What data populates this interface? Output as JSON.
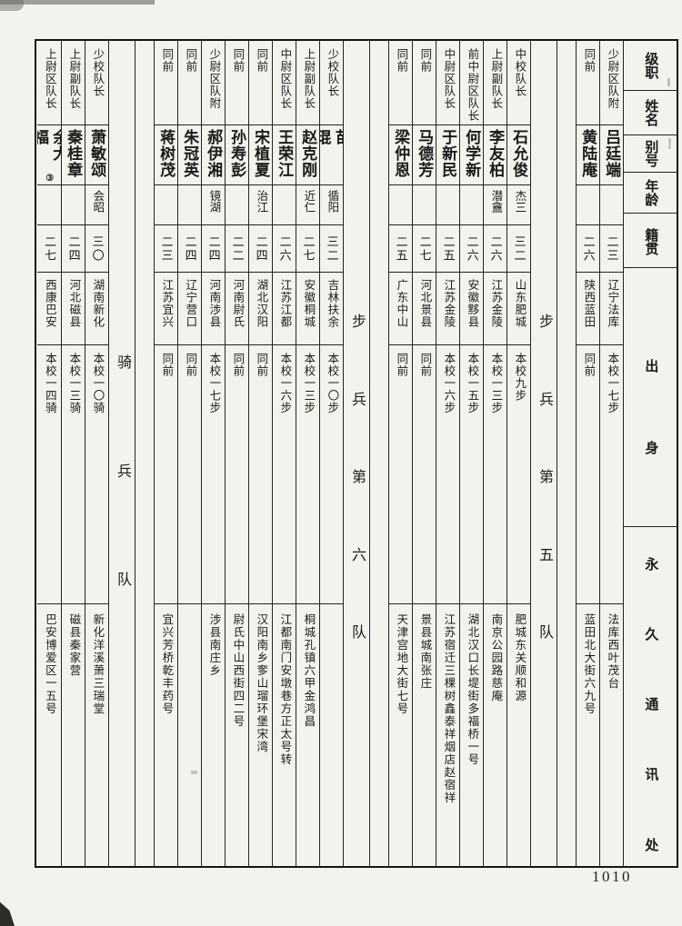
{
  "page": {
    "number": "1010"
  },
  "headers": {
    "rank": "级职",
    "name": "姓名",
    "hao": "别号",
    "age": "年龄",
    "native": "籍贯",
    "background": "出身",
    "address": "永久通讯处"
  },
  "sections": {
    "infantry5": "步兵第五队",
    "infantry6": "步兵第六队",
    "cavalry": "骑兵队"
  },
  "people": [
    {
      "rank": "少尉区队附",
      "name": "吕廷端",
      "mark": "",
      "hao": "",
      "age": "二三",
      "native": "辽宁法库",
      "background": "本校一七步",
      "address": "法库西叶茂台"
    },
    {
      "rank": "同前",
      "name": "黄陆庵",
      "mark": "",
      "hao": "",
      "age": "二六",
      "native": "陕西蓝田",
      "background": "同前",
      "address": "蓝田北大街六九号"
    },
    {
      "rank": "中校队长",
      "name": "石允俊",
      "mark": "",
      "hao": "杰三",
      "age": "三二",
      "native": "山东肥城",
      "background": "本校九步",
      "address": "肥城东关顺和源"
    },
    {
      "rank": "上尉副队长",
      "name": "李友柏",
      "mark": "",
      "hao": "潜盦",
      "age": "二六",
      "native": "江苏金陵",
      "background": "本校一三步",
      "address": "南京公园路慈庵"
    },
    {
      "rank": "前中尉区队长",
      "name": "何学新",
      "mark": "",
      "hao": "",
      "age": "二六",
      "native": "安徽黟县",
      "background": "本校一五步",
      "address": "湖北汉口长堤街多福桥一号"
    },
    {
      "rank": "中尉区队长",
      "name": "于新民",
      "mark": "",
      "hao": "",
      "age": "二五",
      "native": "江苏金陵",
      "background": "本校一六步",
      "address": "江苏宿迁三棵树鑫泰祥烟店赵宿祥"
    },
    {
      "rank": "同前",
      "name": "马德芳",
      "mark": "",
      "hao": "",
      "age": "二七",
      "native": "河北景县",
      "background": "同前",
      "address": "景县城南张庄"
    },
    {
      "rank": "同前",
      "name": "梁仲恩",
      "mark": "",
      "hao": "",
      "age": "二五",
      "native": "广东中山",
      "background": "同前",
      "address": "天津宫地大街七号"
    },
    {
      "rank": "少校队长",
      "name": "苗琨",
      "mark": "",
      "hao": "循阳",
      "age": "三二",
      "native": "吉林扶余",
      "background": "本校一〇步",
      "address": ""
    },
    {
      "rank": "上尉副队长",
      "name": "赵克刚",
      "mark": "",
      "hao": "近仁",
      "age": "二七",
      "native": "安徽桐城",
      "background": "本校一三步",
      "address": "桐城孔镇六甲金鸿昌"
    },
    {
      "rank": "中尉区队长",
      "name": "王荣江",
      "mark": "",
      "hao": "",
      "age": "二六",
      "native": "江苏江都",
      "background": "本校一六步",
      "address": "江都南门安墩巷方正太号转"
    },
    {
      "rank": "同前",
      "name": "宋植夏",
      "mark": "",
      "hao": "治江",
      "age": "二四",
      "native": "湖北汉阳",
      "background": "同前",
      "address": "汉阳南乡奓山瑠环堡宋湾"
    },
    {
      "rank": "同前",
      "name": "孙寿彭",
      "mark": "",
      "hao": "",
      "age": "二二",
      "native": "河南尉氏",
      "background": "同前",
      "address": "尉氏中山西街四二号"
    },
    {
      "rank": "少尉区队附",
      "name": "郝伊湘",
      "mark": "",
      "hao": "镜湖",
      "age": "二四",
      "native": "河南涉县",
      "background": "本校一七步",
      "address": "涉县南庄乡"
    },
    {
      "rank": "同前",
      "name": "朱冠英",
      "mark": "",
      "hao": "",
      "age": "二四",
      "native": "辽宁营口",
      "background": "同前",
      "address": ""
    },
    {
      "rank": "同前",
      "name": "蒋树茂",
      "mark": "",
      "hao": "",
      "age": "二三",
      "native": "江苏宜兴",
      "background": "同前",
      "address": "宜兴芳桥乾丰药号"
    },
    {
      "rank": "少校队长",
      "name": "萧敏颂",
      "mark": "",
      "hao": "会昭",
      "age": "三〇",
      "native": "湖南新化",
      "background": "本校一〇骑",
      "address": "新化洋溪萧三瑞堂"
    },
    {
      "rank": "上尉副队长",
      "name": "秦桂章",
      "mark": "",
      "hao": "",
      "age": "二四",
      "native": "河北磁县",
      "background": "本校一三骑",
      "address": "磁县秦家营"
    },
    {
      "rank": "上尉区队长",
      "name": "余大福",
      "mark": "③",
      "hao": "",
      "age": "二七",
      "native": "西康巴安",
      "background": "本校一四骑",
      "address": "巴安博爱区一五号"
    }
  ]
}
